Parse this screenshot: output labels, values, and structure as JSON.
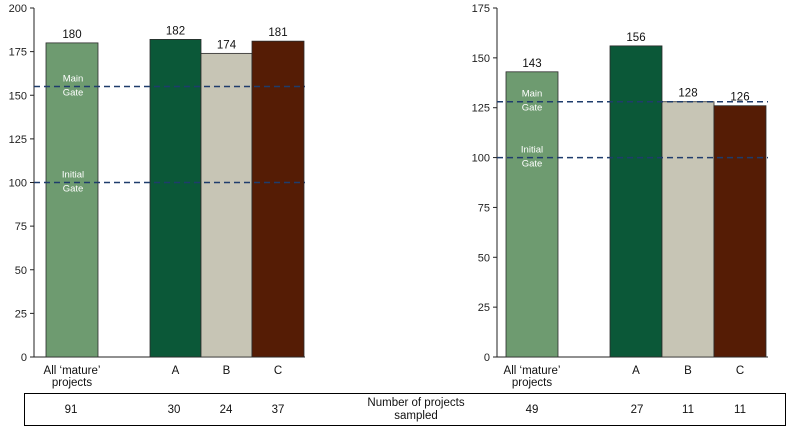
{
  "chart_data": [
    {
      "type": "bar",
      "title": "",
      "xlabel": "",
      "ylabel": "",
      "ylim": [
        0,
        200
      ],
      "yticks": [
        0,
        25,
        50,
        75,
        100,
        125,
        150,
        175,
        200
      ],
      "categories": [
        {
          "label1": "All ‘mature’",
          "label2": "projects"
        },
        {
          "label1": "A",
          "label2": ""
        },
        {
          "label1": "B",
          "label2": ""
        },
        {
          "label1": "C",
          "label2": ""
        }
      ],
      "values": [
        180,
        182,
        174,
        181
      ],
      "value_labels": [
        "180",
        "182",
        "174",
        "181"
      ],
      "colors": [
        "#6e9b70",
        "#0b5838",
        "#c7c5b5",
        "#551c05"
      ],
      "reference_lines": [
        {
          "value": 155,
          "label1": "Main",
          "label2": "Gate",
          "color": "#1f3c6c"
        },
        {
          "value": 100,
          "label1": "Initial",
          "label2": "Gate",
          "color": "#1f3c6c"
        }
      ],
      "grid": false
    },
    {
      "type": "bar",
      "title": "",
      "xlabel": "",
      "ylabel": "",
      "ylim": [
        0,
        175
      ],
      "yticks": [
        0,
        25,
        50,
        75,
        100,
        125,
        150,
        175
      ],
      "categories": [
        {
          "label1": "All ‘mature’",
          "label2": "projects"
        },
        {
          "label1": "A",
          "label2": ""
        },
        {
          "label1": "B",
          "label2": ""
        },
        {
          "label1": "C",
          "label2": ""
        }
      ],
      "values": [
        143,
        156,
        128,
        126
      ],
      "value_labels": [
        "143",
        "156",
        "128",
        "126"
      ],
      "colors": [
        "#6e9b70",
        "#0b5838",
        "#c7c5b5",
        "#551c05"
      ],
      "reference_lines": [
        {
          "value": 128,
          "label1": "Main",
          "label2": "Gate",
          "color": "#1f3c6c"
        },
        {
          "value": 100,
          "label1": "Initial",
          "label2": "Gate",
          "color": "#1f3c6c"
        }
      ],
      "grid": false
    }
  ],
  "sample_table": {
    "label1": "Number of projects",
    "label2": "sampled",
    "left_counts": [
      "91",
      "30",
      "24",
      "37"
    ],
    "right_counts": [
      "49",
      "27",
      "11",
      "11"
    ]
  }
}
